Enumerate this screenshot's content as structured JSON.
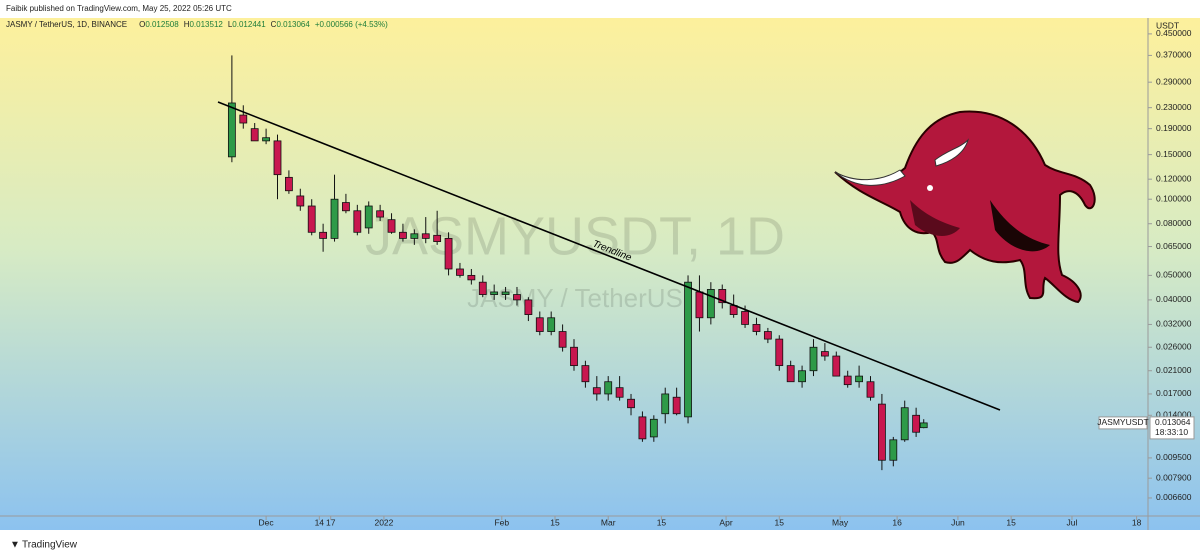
{
  "header": {
    "published": "Faibik published on TradingView.com, May 25, 2022 05:26 UTC"
  },
  "footer": {
    "brand": "TradingView"
  },
  "chart_data": {
    "type": "candlestick",
    "symbol": "JASMY / TetherUS, 1D, BINANCE",
    "ohlc_prefixes": [
      "O",
      "H",
      "L",
      "C"
    ],
    "change": "+0.000566 (+4.53%)",
    "watermark": {
      "title": "JASMYUSDT, 1D",
      "subtitle": "JASMY / TetherUS"
    },
    "annotation": "Trendline",
    "y_unit": "USDT",
    "symbol_tag": "JASMYUSDT",
    "countdown": "18:33:10",
    "log_scale": true,
    "up_color": "#2e9a48",
    "down_color": "#c8174f",
    "x": [
      -9,
      -6,
      -3,
      0,
      3,
      6,
      9,
      12,
      15,
      18,
      21,
      24,
      27,
      30,
      33,
      36,
      39,
      42,
      45,
      48,
      51,
      54,
      57,
      60,
      63,
      66,
      69,
      72,
      75,
      78,
      81,
      84,
      87,
      90,
      93,
      96,
      99,
      102,
      105,
      108,
      111,
      114,
      117,
      120,
      123,
      126,
      129,
      132,
      135,
      138,
      141,
      144,
      147,
      150,
      153,
      156,
      159,
      162,
      165,
      168,
      171,
      173
    ],
    "open": [
      0.147,
      0.215,
      0.19,
      0.17,
      0.17,
      0.122,
      0.103,
      0.094,
      0.074,
      0.07,
      0.097,
      0.09,
      0.077,
      0.09,
      0.083,
      0.074,
      0.07,
      0.073,
      0.072,
      0.07,
      0.053,
      0.05,
      0.047,
      0.042,
      0.042,
      0.042,
      0.04,
      0.034,
      0.03,
      0.03,
      0.026,
      0.022,
      0.018,
      0.017,
      0.018,
      0.0162,
      0.0138,
      0.0115,
      0.0142,
      0.0165,
      0.0138,
      0.043,
      0.034,
      0.044,
      0.038,
      0.036,
      0.032,
      0.03,
      0.028,
      0.022,
      0.019,
      0.021,
      0.025,
      0.024,
      0.02,
      0.019,
      0.019,
      0.0155,
      0.0093,
      0.0112,
      0.014,
      0.012508
    ],
    "high": [
      0.37,
      0.235,
      0.2,
      0.19,
      0.18,
      0.13,
      0.11,
      0.1,
      0.08,
      0.125,
      0.105,
      0.095,
      0.098,
      0.095,
      0.088,
      0.08,
      0.076,
      0.085,
      0.09,
      0.074,
      0.056,
      0.053,
      0.05,
      0.046,
      0.045,
      0.045,
      0.041,
      0.036,
      0.036,
      0.032,
      0.028,
      0.023,
      0.02,
      0.02,
      0.02,
      0.017,
      0.0145,
      0.014,
      0.018,
      0.018,
      0.05,
      0.05,
      0.047,
      0.046,
      0.042,
      0.038,
      0.034,
      0.031,
      0.029,
      0.023,
      0.022,
      0.028,
      0.027,
      0.025,
      0.021,
      0.022,
      0.02,
      0.017,
      0.0115,
      0.016,
      0.015,
      0.013512
    ],
    "low": [
      0.14,
      0.19,
      0.17,
      0.165,
      0.1,
      0.105,
      0.09,
      0.072,
      0.062,
      0.068,
      0.088,
      0.072,
      0.073,
      0.082,
      0.073,
      0.068,
      0.066,
      0.067,
      0.066,
      0.05,
      0.049,
      0.046,
      0.041,
      0.04,
      0.04,
      0.038,
      0.033,
      0.029,
      0.029,
      0.025,
      0.021,
      0.018,
      0.016,
      0.016,
      0.016,
      0.014,
      0.011,
      0.011,
      0.013,
      0.014,
      0.013,
      0.03,
      0.032,
      0.037,
      0.034,
      0.031,
      0.029,
      0.027,
      0.021,
      0.019,
      0.018,
      0.02,
      0.023,
      0.02,
      0.018,
      0.018,
      0.016,
      0.0085,
      0.0088,
      0.011,
      0.0115,
      0.012441
    ],
    "close": [
      0.24,
      0.2,
      0.17,
      0.175,
      0.125,
      0.108,
      0.094,
      0.074,
      0.07,
      0.1,
      0.09,
      0.074,
      0.094,
      0.085,
      0.074,
      0.07,
      0.073,
      0.07,
      0.068,
      0.053,
      0.05,
      0.048,
      0.042,
      0.043,
      0.043,
      0.04,
      0.035,
      0.03,
      0.034,
      0.026,
      0.022,
      0.019,
      0.017,
      0.019,
      0.0165,
      0.015,
      0.0113,
      0.0135,
      0.017,
      0.0142,
      0.047,
      0.034,
      0.044,
      0.039,
      0.035,
      0.032,
      0.03,
      0.028,
      0.022,
      0.019,
      0.021,
      0.026,
      0.024,
      0.02,
      0.0185,
      0.02,
      0.0165,
      0.0093,
      0.0112,
      0.015,
      0.012,
      0.013064
    ],
    "xlim": [
      -70,
      232
    ],
    "xticks": [
      {
        "value": 0,
        "label": "Dec"
      },
      14,
      {
        "value": 31,
        "label": "2022"
      },
      17,
      {
        "value": 62,
        "label": "Feb"
      },
      {
        "value": 76,
        "label": "15"
      },
      {
        "value": 90,
        "label": "Mar"
      },
      {
        "value": 104,
        "label": "15"
      },
      {
        "value": 121,
        "label": "Apr"
      },
      {
        "value": 135,
        "label": "15"
      },
      {
        "value": 151,
        "label": "May"
      },
      {
        "value": 166,
        "label": "16"
      },
      {
        "value": 182,
        "label": "Jun"
      },
      {
        "value": 196,
        "label": "15"
      },
      {
        "value": 212,
        "label": "Jul"
      },
      {
        "value": 229,
        "label": "18"
      }
    ],
    "ylim": [
      0.0056,
      0.52
    ],
    "yticks": [
      {
        "value": 0.45,
        "label": "0.450000"
      },
      {
        "value": 0.37,
        "label": "0.370000"
      },
      {
        "value": 0.29,
        "label": "0.290000"
      },
      {
        "value": 0.23,
        "label": "0.230000"
      },
      {
        "value": 0.19,
        "label": "0.190000"
      },
      {
        "value": 0.15,
        "label": "0.150000"
      },
      {
        "value": 0.12,
        "label": "0.120000"
      },
      {
        "value": 0.1,
        "label": "0.100000"
      },
      {
        "value": 0.08,
        "label": "0.080000"
      },
      {
        "value": 0.065,
        "label": "0.065000"
      },
      {
        "value": 0.05,
        "label": "0.050000"
      },
      {
        "value": 0.04,
        "label": "0.040000"
      },
      {
        "value": 0.032,
        "label": "0.032000"
      },
      {
        "value": 0.026,
        "label": "0.026000"
      },
      {
        "value": 0.021,
        "label": "0.021000"
      },
      {
        "value": 0.017,
        "label": "0.017000"
      },
      {
        "value": 0.014,
        "label": "0.014000"
      },
      {
        "value": 0.0095,
        "label": "0.009500"
      },
      {
        "value": 0.0079,
        "label": "0.007900"
      },
      {
        "value": 0.0066,
        "label": "0.006600"
      }
    ]
  }
}
